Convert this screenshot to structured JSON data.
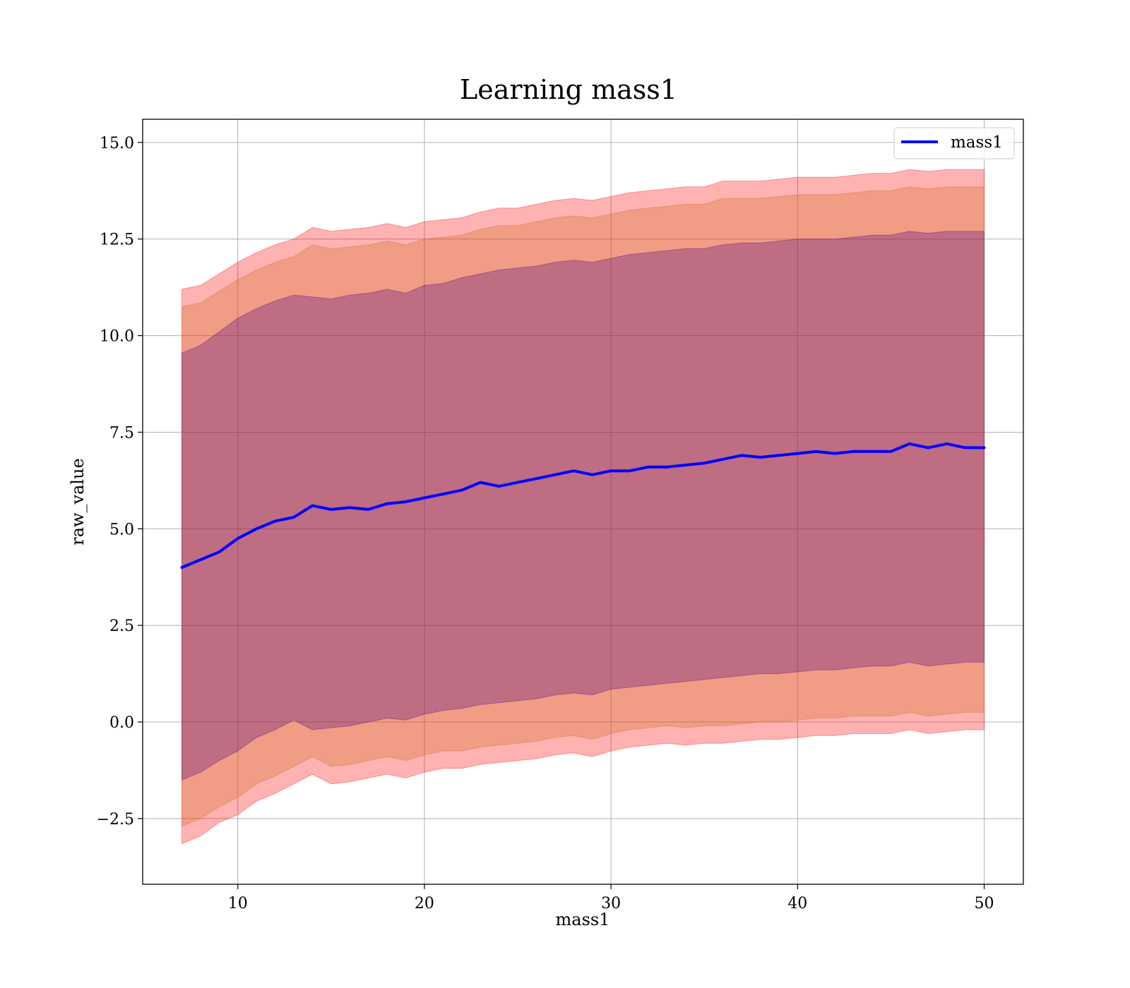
{
  "chart_data": {
    "type": "area",
    "title": "Learning mass1",
    "xlabel": "mass1",
    "ylabel": "raw_value",
    "xlim": [
      4.9,
      52.1
    ],
    "ylim": [
      -4.2,
      15.6
    ],
    "xticks": [
      10,
      20,
      30,
      40,
      50
    ],
    "xtick_labels": [
      "10",
      "20",
      "30",
      "40",
      "50"
    ],
    "yticks": [
      -2.5,
      0.0,
      2.5,
      5.0,
      7.5,
      10.0,
      12.5,
      15.0
    ],
    "ytick_labels": [
      "−2.5",
      "0.0",
      "2.5",
      "5.0",
      "7.5",
      "10.0",
      "12.5",
      "15.0"
    ],
    "grid": true,
    "legend": {
      "position": "top-right",
      "entries": [
        "mass1"
      ]
    },
    "colors": {
      "mean_line": "#0000ff",
      "band_outer": "#ff0000",
      "band_middle": "#d2691e",
      "band_inner": "#4b0082",
      "grid": "#b0b0b0"
    },
    "x": [
      7,
      8,
      9,
      10,
      11,
      12,
      13,
      14,
      15,
      16,
      17,
      18,
      19,
      20,
      21,
      22,
      23,
      24,
      25,
      26,
      27,
      28,
      29,
      30,
      31,
      32,
      33,
      34,
      35,
      36,
      37,
      38,
      39,
      40,
      41,
      42,
      43,
      44,
      45,
      46,
      47,
      48,
      49,
      50
    ],
    "series": [
      {
        "name": "mass1",
        "role": "mean",
        "values": [
          4.0,
          4.2,
          4.4,
          4.75,
          5.0,
          5.2,
          5.3,
          5.6,
          5.5,
          5.55,
          5.5,
          5.65,
          5.7,
          5.8,
          5.9,
          6.0,
          6.2,
          6.1,
          6.2,
          6.3,
          6.4,
          6.5,
          6.4,
          6.5,
          6.5,
          6.6,
          6.6,
          6.65,
          6.7,
          6.8,
          6.9,
          6.85,
          6.9,
          6.95,
          7.0,
          6.95,
          7.0,
          7.0,
          7.0,
          7.2,
          7.1,
          7.2,
          7.1,
          7.1
        ]
      },
      {
        "name": "",
        "role": "band_outer",
        "lower": [
          -3.15,
          -2.95,
          -2.6,
          -2.4,
          -2.05,
          -1.85,
          -1.6,
          -1.35,
          -1.6,
          -1.55,
          -1.45,
          -1.35,
          -1.45,
          -1.3,
          -1.2,
          -1.2,
          -1.1,
          -1.05,
          -1.0,
          -0.95,
          -0.85,
          -0.8,
          -0.9,
          -0.75,
          -0.65,
          -0.6,
          -0.55,
          -0.6,
          -0.55,
          -0.55,
          -0.5,
          -0.45,
          -0.45,
          -0.4,
          -0.35,
          -0.35,
          -0.3,
          -0.3,
          -0.3,
          -0.2,
          -0.3,
          -0.25,
          -0.2,
          -0.2
        ],
        "upper": [
          11.2,
          11.3,
          11.6,
          11.9,
          12.15,
          12.35,
          12.5,
          12.8,
          12.7,
          12.75,
          12.8,
          12.9,
          12.8,
          12.95,
          13.0,
          13.05,
          13.2,
          13.3,
          13.3,
          13.4,
          13.5,
          13.55,
          13.5,
          13.6,
          13.7,
          13.75,
          13.8,
          13.85,
          13.85,
          14.0,
          14.0,
          14.0,
          14.05,
          14.1,
          14.1,
          14.1,
          14.15,
          14.2,
          14.2,
          14.3,
          14.25,
          14.3,
          14.3,
          14.3
        ]
      },
      {
        "name": "",
        "role": "band_middle",
        "lower": [
          -2.7,
          -2.5,
          -2.2,
          -1.95,
          -1.6,
          -1.4,
          -1.15,
          -0.9,
          -1.15,
          -1.1,
          -1.0,
          -0.9,
          -1.0,
          -0.85,
          -0.75,
          -0.75,
          -0.65,
          -0.6,
          -0.55,
          -0.5,
          -0.4,
          -0.35,
          -0.45,
          -0.3,
          -0.2,
          -0.15,
          -0.1,
          -0.15,
          -0.1,
          -0.1,
          -0.05,
          0.0,
          0.0,
          0.05,
          0.1,
          0.1,
          0.15,
          0.15,
          0.15,
          0.25,
          0.15,
          0.2,
          0.25,
          0.25
        ],
        "upper": [
          10.75,
          10.85,
          11.15,
          11.45,
          11.7,
          11.9,
          12.05,
          12.35,
          12.25,
          12.3,
          12.35,
          12.45,
          12.35,
          12.5,
          12.55,
          12.6,
          12.75,
          12.85,
          12.85,
          12.95,
          13.05,
          13.1,
          13.05,
          13.15,
          13.25,
          13.3,
          13.35,
          13.4,
          13.4,
          13.55,
          13.55,
          13.55,
          13.6,
          13.65,
          13.65,
          13.65,
          13.7,
          13.75,
          13.75,
          13.85,
          13.8,
          13.85,
          13.85,
          13.85
        ]
      },
      {
        "name": "",
        "role": "band_inner",
        "lower": [
          -1.5,
          -1.3,
          -1.0,
          -0.75,
          -0.4,
          -0.2,
          0.05,
          -0.2,
          -0.15,
          -0.1,
          0.0,
          0.1,
          0.05,
          0.2,
          0.3,
          0.35,
          0.45,
          0.5,
          0.55,
          0.6,
          0.7,
          0.75,
          0.7,
          0.85,
          0.9,
          0.95,
          1.0,
          1.05,
          1.1,
          1.15,
          1.2,
          1.25,
          1.25,
          1.3,
          1.35,
          1.35,
          1.4,
          1.45,
          1.45,
          1.55,
          1.45,
          1.5,
          1.55,
          1.55
        ],
        "upper": [
          9.55,
          9.75,
          10.1,
          10.45,
          10.7,
          10.9,
          11.05,
          11.0,
          10.95,
          11.05,
          11.1,
          11.2,
          11.1,
          11.3,
          11.35,
          11.5,
          11.6,
          11.7,
          11.75,
          11.8,
          11.9,
          11.95,
          11.9,
          12.0,
          12.1,
          12.15,
          12.2,
          12.25,
          12.25,
          12.35,
          12.4,
          12.4,
          12.45,
          12.5,
          12.5,
          12.5,
          12.55,
          12.6,
          12.6,
          12.7,
          12.65,
          12.7,
          12.7,
          12.7
        ]
      }
    ]
  }
}
